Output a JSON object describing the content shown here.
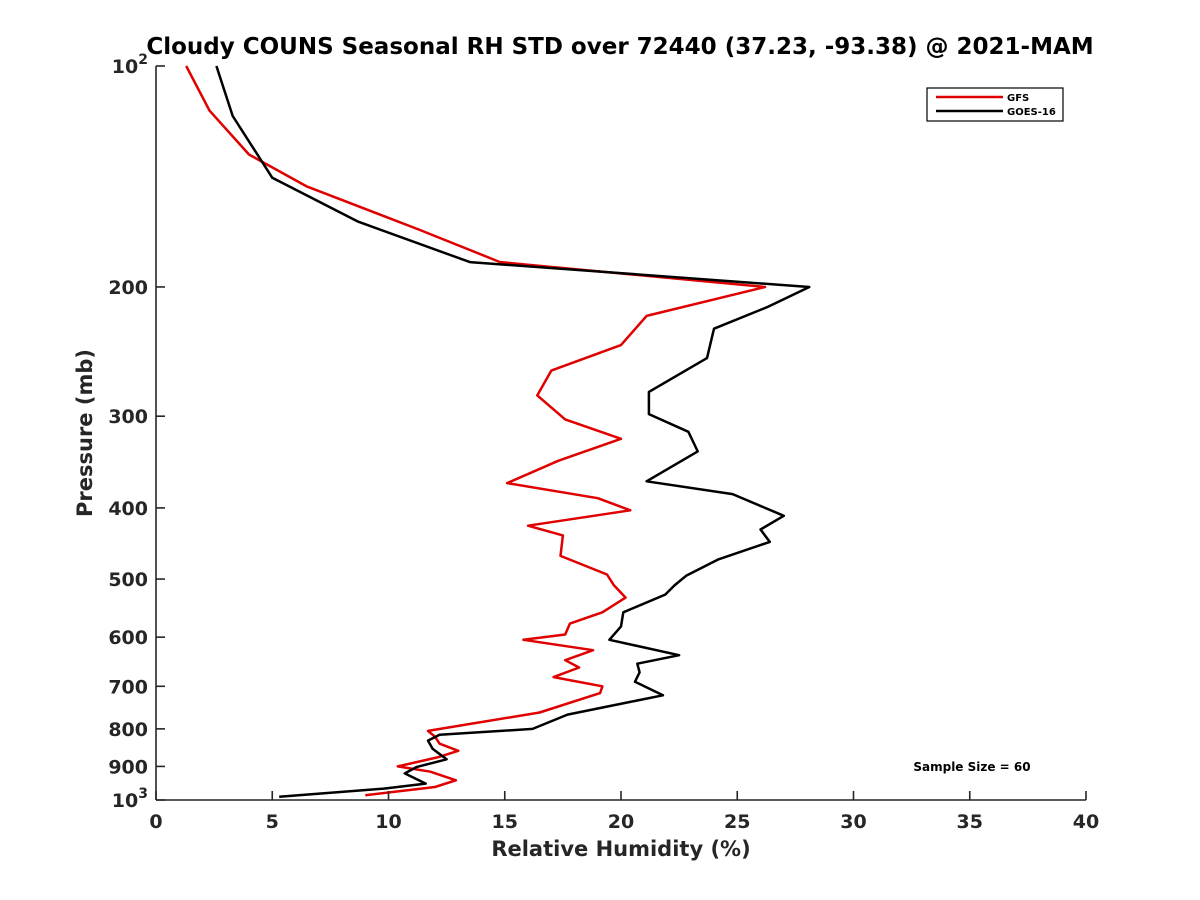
{
  "chart_data": {
    "type": "line",
    "title": "Cloudy COUNS Seasonal RH STD over 72440 (37.23, -93.38) @ 2021-MAM",
    "xlabel": "Relative Humidity (%)",
    "ylabel": "Pressure (mb)",
    "xlim": [
      0,
      40
    ],
    "ylim": [
      100,
      1000
    ],
    "yscale": "log",
    "y_reversed": true,
    "xticks": [
      0,
      5,
      10,
      15,
      20,
      25,
      30,
      35,
      40
    ],
    "xtick_labels": [
      "0",
      "5",
      "10",
      "15",
      "20",
      "25",
      "30",
      "35",
      "40"
    ],
    "ytick_labels": [
      {
        "value": 100,
        "base": "10",
        "exp": "2"
      },
      {
        "value": 200,
        "base": "200",
        "exp": ""
      },
      {
        "value": 300,
        "base": "300",
        "exp": ""
      },
      {
        "value": 400,
        "base": "400",
        "exp": ""
      },
      {
        "value": 500,
        "base": "500",
        "exp": ""
      },
      {
        "value": 600,
        "base": "600",
        "exp": ""
      },
      {
        "value": 700,
        "base": "700",
        "exp": ""
      },
      {
        "value": 800,
        "base": "800",
        "exp": ""
      },
      {
        "value": 900,
        "base": "900",
        "exp": ""
      },
      {
        "value": 1000,
        "base": "10",
        "exp": "3"
      }
    ],
    "legend_position": "top-right",
    "annotation": "Sample Size = 60",
    "series": [
      {
        "name": "GFS",
        "color": "#e00000",
        "rh": [
          1.3,
          2.3,
          4.0,
          6.5,
          11.3,
          14.8,
          26.2,
          21.1,
          20.0,
          17.0,
          16.4,
          17.6,
          20.0,
          17.3,
          15.1,
          19.0,
          20.4,
          16.0,
          17.5,
          17.4,
          19.4,
          19.7,
          20.2,
          19.2,
          17.8,
          17.6,
          15.8,
          18.8,
          17.6,
          18.2,
          17.1,
          19.2,
          19.1,
          16.5,
          11.7,
          12.0,
          12.2,
          13.0,
          12.1,
          10.4,
          11.8,
          12.9,
          12.0,
          9.0
        ],
        "pressure": [
          100,
          115,
          132,
          146,
          167,
          185,
          200,
          219,
          240,
          260,
          281,
          303,
          322,
          345,
          370,
          388,
          403,
          423,
          436,
          465,
          493,
          510,
          530,
          555,
          575,
          595,
          605,
          625,
          645,
          660,
          680,
          700,
          715,
          760,
          805,
          820,
          838,
          857,
          875,
          900,
          915,
          940,
          960,
          985
        ]
      },
      {
        "name": "GOES-16",
        "color": "#000000",
        "rh": [
          2.6,
          3.3,
          5.0,
          8.7,
          13.5,
          28.1,
          26.3,
          24.0,
          23.7,
          21.2,
          21.2,
          22.9,
          23.3,
          21.1,
          24.8,
          27.0,
          26.0,
          26.4,
          24.2,
          22.8,
          22.3,
          21.9,
          20.1,
          20.0,
          19.5,
          22.5,
          20.7,
          20.8,
          20.6,
          21.8,
          20.4,
          17.7,
          16.2,
          12.2,
          11.7,
          11.9,
          12.5,
          11.2,
          10.7,
          11.6,
          9.8,
          5.3
        ],
        "pressure": [
          100,
          117,
          142,
          163,
          185,
          200,
          213,
          228,
          250,
          278,
          298,
          315,
          335,
          368,
          383,
          410,
          428,
          445,
          470,
          495,
          510,
          525,
          555,
          580,
          605,
          635,
          652,
          670,
          690,
          720,
          735,
          765,
          800,
          815,
          830,
          852,
          880,
          902,
          920,
          950,
          965,
          990
        ]
      }
    ]
  }
}
